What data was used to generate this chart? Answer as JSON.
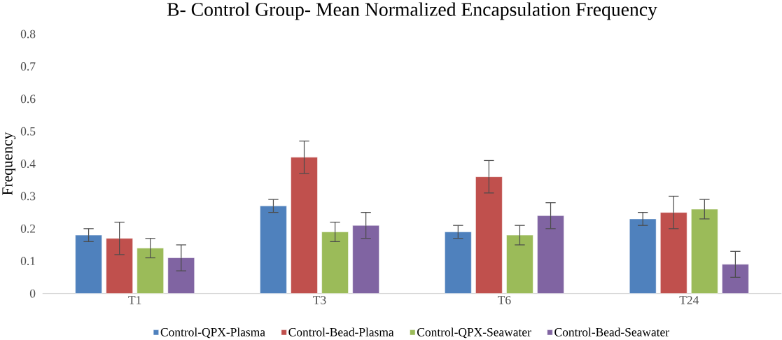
{
  "chart_data": {
    "type": "bar",
    "title": "B- Control Group- Mean Normalized Encapsulation Frequency",
    "ylabel": "Frequency",
    "categories": [
      "T1",
      "T3",
      "T6",
      "T24"
    ],
    "series": [
      {
        "name": "Control-QPX-Plasma",
        "color": "#4f81bd",
        "values": [
          0.18,
          0.27,
          0.19,
          0.23
        ],
        "errors": [
          0.02,
          0.02,
          0.02,
          0.02
        ]
      },
      {
        "name": "Control-Bead-Plasma",
        "color": "#c0504d",
        "values": [
          0.17,
          0.42,
          0.36,
          0.25
        ],
        "errors": [
          0.05,
          0.05,
          0.05,
          0.05
        ]
      },
      {
        "name": "Control-QPX-Seawater",
        "color": "#9bbb59",
        "values": [
          0.14,
          0.19,
          0.18,
          0.26
        ],
        "errors": [
          0.03,
          0.03,
          0.03,
          0.03
        ]
      },
      {
        "name": "Control-Bead-Seawater",
        "color": "#8064a2",
        "values": [
          0.11,
          0.21,
          0.24,
          0.09
        ],
        "errors": [
          0.04,
          0.04,
          0.04,
          0.04
        ]
      }
    ],
    "ylim": [
      0,
      0.8
    ],
    "yticks": [
      0,
      0.1,
      0.2,
      0.3,
      0.4,
      0.5,
      0.6,
      0.7,
      0.8
    ],
    "legend": "bottom"
  }
}
